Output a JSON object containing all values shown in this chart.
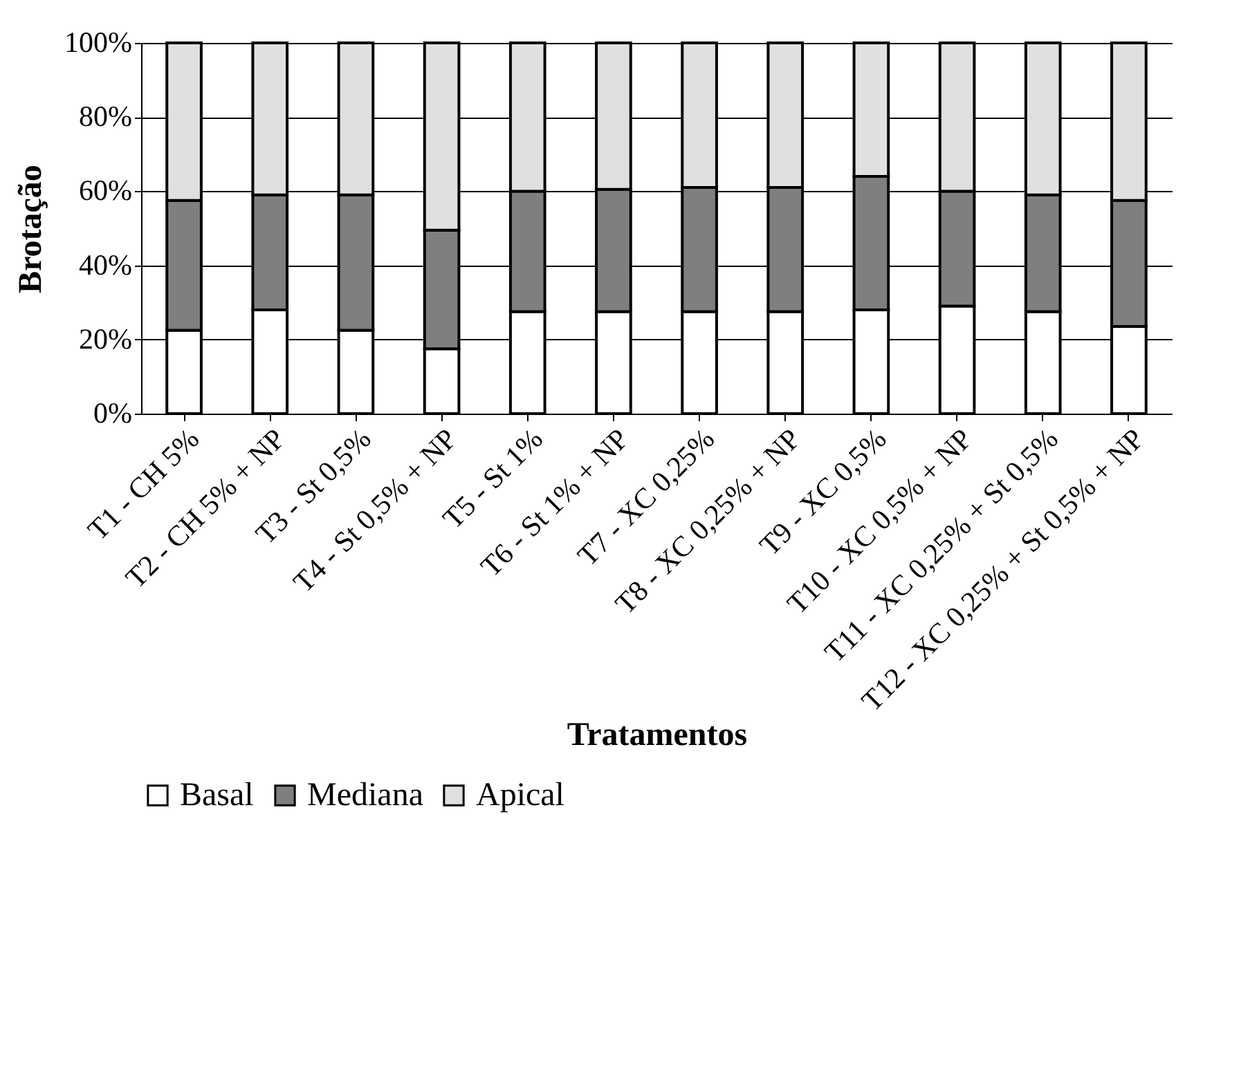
{
  "chart_data": {
    "type": "bar",
    "stacked": true,
    "xlabel": "Tratamentos",
    "ylabel": "Brotação",
    "categories": [
      "T1 - CH 5%",
      "T2 - CH 5% + NP",
      "T3 - St 0,5%",
      "T4 - St 0,5% + NP",
      "T5 - St 1%",
      "T6 - St 1% + NP",
      "T7 - XC 0,25%",
      "T8 - XC 0,25% + NP",
      "T9 - XC 0,5%",
      "T10 - XC 0,5% + NP",
      "T11 - XC 0,25% + St 0,5%",
      "T12 - XC 0,25% + St 0,5% + NP"
    ],
    "series": [
      {
        "name": "Basal",
        "color": "#ffffff",
        "values": [
          22.5,
          28,
          22.5,
          17.5,
          27.5,
          27.5,
          27.5,
          27.5,
          28,
          29,
          27.5,
          23.5
        ]
      },
      {
        "name": "Mediana",
        "color": "#7f7f7f",
        "values": [
          35,
          31,
          36.5,
          32,
          32.5,
          33,
          33.5,
          33.5,
          36,
          31,
          31.5,
          34
        ]
      },
      {
        "name": "Apical",
        "color": "#e0e0e0",
        "values": [
          42.5,
          41,
          41,
          50.5,
          40,
          39.5,
          39,
          39,
          36,
          40,
          41,
          42.5
        ]
      }
    ],
    "ylim": [
      0,
      100
    ],
    "yticks": [
      {
        "value": 0,
        "label": "0%"
      },
      {
        "value": 20,
        "label": "20%"
      },
      {
        "value": 40,
        "label": "40%"
      },
      {
        "value": 60,
        "label": "60%"
      },
      {
        "value": 80,
        "label": "80%"
      },
      {
        "value": 100,
        "label": "100%"
      }
    ],
    "grid": "y",
    "legend": "bottom"
  }
}
